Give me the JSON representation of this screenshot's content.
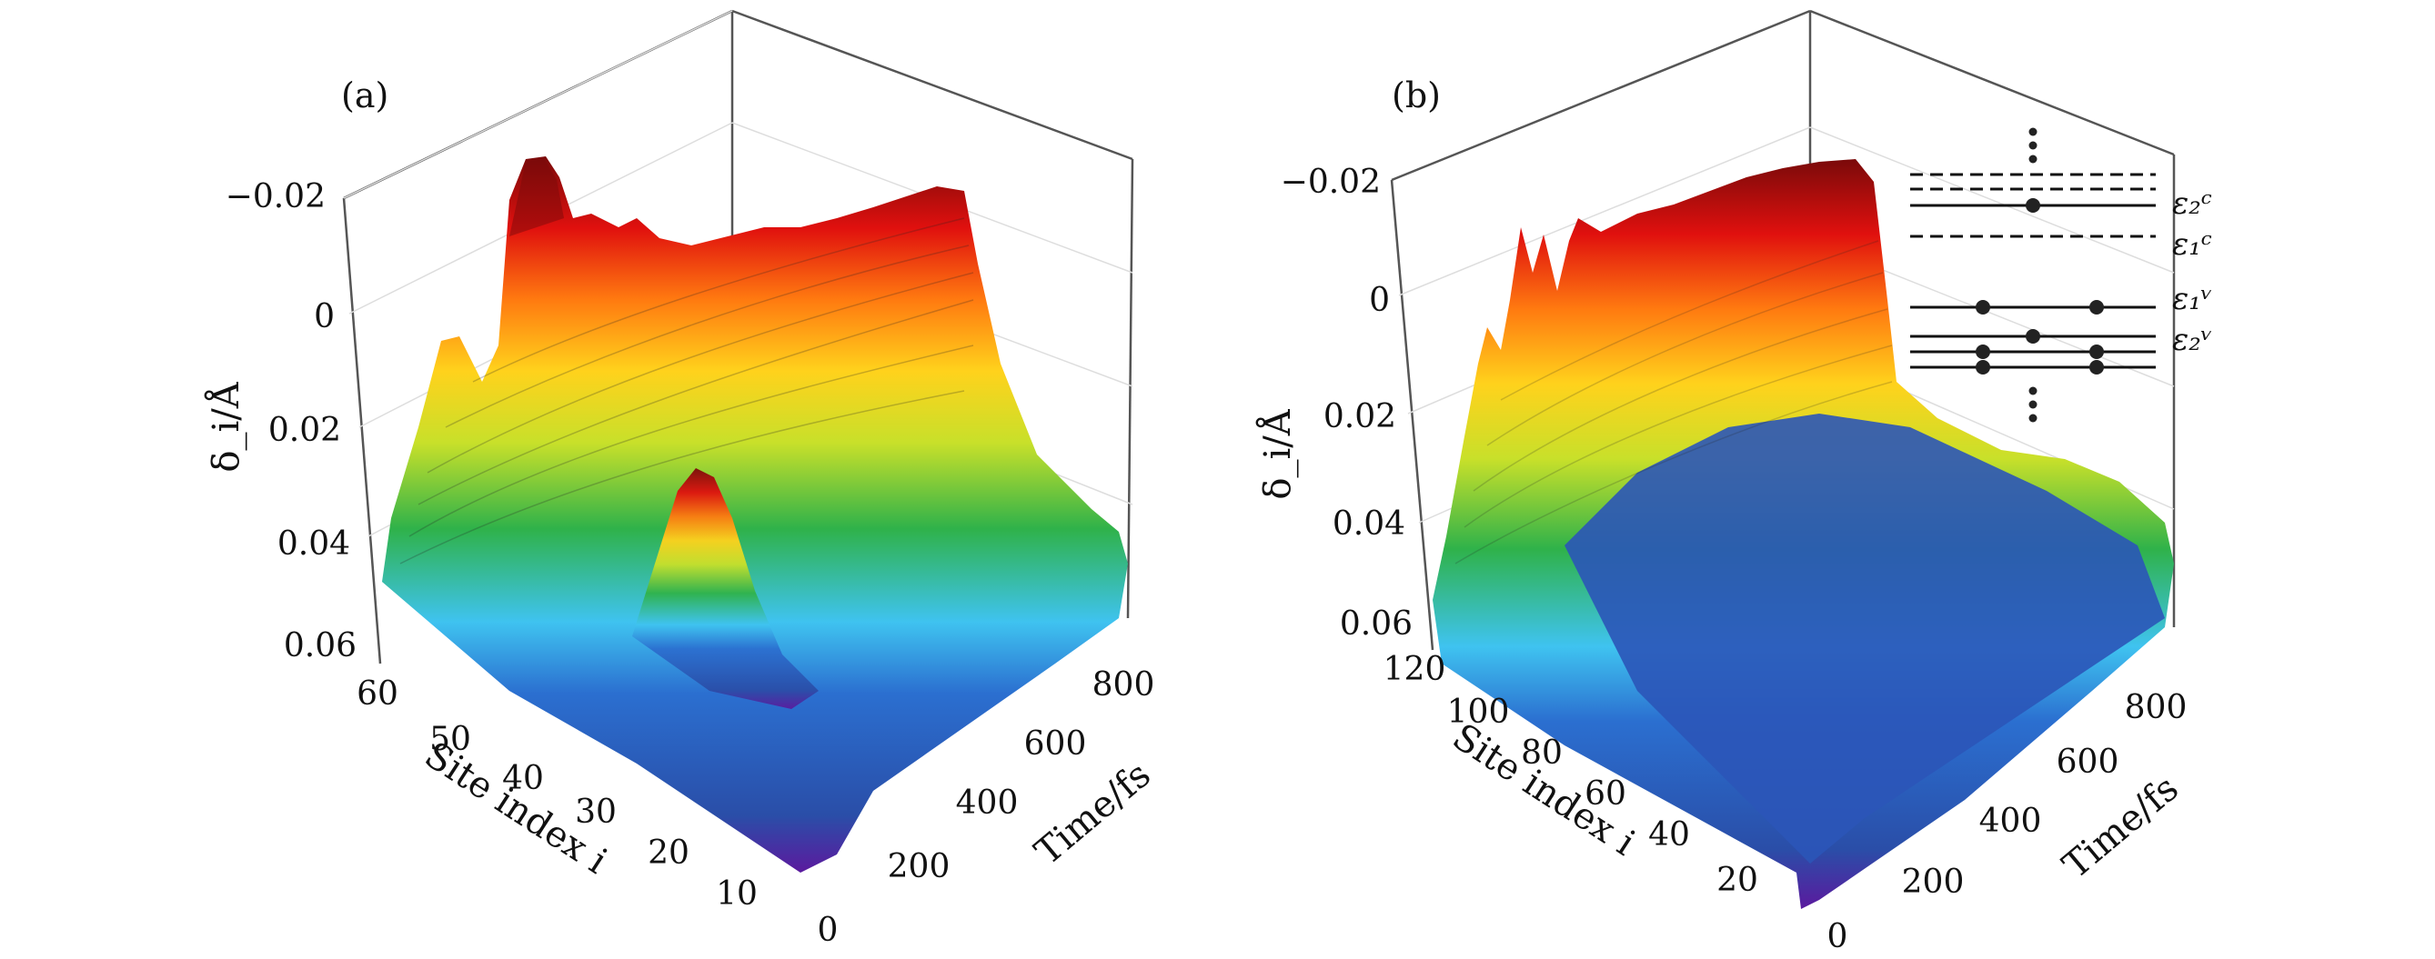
{
  "figure": {
    "panels": [
      {
        "label": "(a)",
        "zlabel": "δ_i/Å",
        "xlabel": "Site index i",
        "ylabel": "Time/fs",
        "ztick_labels": [
          "−0.02",
          "0",
          "0.02",
          "0.04",
          "0.06"
        ],
        "site_tick_labels": [
          "60",
          "50",
          "40",
          "30",
          "20",
          "10"
        ],
        "time_tick_labels": [
          "0",
          "200",
          "400",
          "600",
          "800"
        ]
      },
      {
        "label": "(b)",
        "zlabel": "δ_i/Å",
        "xlabel": "Site index i",
        "ylabel": "Time/fs",
        "ztick_labels": [
          "−0.02",
          "0",
          "0.02",
          "0.04",
          "0.06"
        ],
        "site_tick_labels": [
          "120",
          "100",
          "80",
          "60",
          "40",
          "20"
        ],
        "time_tick_labels": [
          "0",
          "200",
          "400",
          "600",
          "800"
        ],
        "inset_levels": {
          "labels": [
            "ε₂ᶜ",
            "ε₁ᶜ",
            "ε₁ᵛ",
            "ε₂ᵛ"
          ]
        }
      }
    ]
  },
  "chart_data": [
    {
      "type": "surface",
      "panel": "(a)",
      "xlabel": "Site index i",
      "ylabel": "Time/fs",
      "zlabel": "δ_i/Å",
      "site_range": [
        1,
        60
      ],
      "time_range": [
        0,
        900
      ],
      "z_range": [
        0.06,
        -0.02
      ],
      "z_axis_inverted": true,
      "colormap": [
        "#5b1a9e",
        "#2a4ea8",
        "#2b6fd0",
        "#3fc3f0",
        "#2fb24a",
        "#c8e02a",
        "#ffd21c",
        "#ff7a10",
        "#e0100e",
        "#7a0a0a"
      ],
      "features": [
        {
          "description_site": 56,
          "time_fs": 100,
          "peak_delta": 0.005
        },
        {
          "description_site": 45,
          "time_fs": 250,
          "peak_delta": -0.026
        },
        {
          "description_site": 20,
          "time_fs": 300,
          "peak_delta": 0.025
        },
        {
          "description_site": 40,
          "time_fs": 850,
          "peak_delta": -0.016
        }
      ]
    },
    {
      "type": "surface",
      "panel": "(b)",
      "xlabel": "Site index i",
      "ylabel": "Time/fs",
      "zlabel": "δ_i/Å",
      "site_range": [
        1,
        120
      ],
      "time_range": [
        0,
        900
      ],
      "z_range": [
        0.06,
        -0.02
      ],
      "z_axis_inverted": true,
      "colormap": [
        "#5b1a9e",
        "#2a4ea8",
        "#2b6fd0",
        "#3fc3f0",
        "#2fb24a",
        "#c8e02a",
        "#ffd21c",
        "#ff7a10",
        "#e0100e",
        "#7a0a0a"
      ],
      "features": [
        {
          "description_site": 118,
          "time_fs": 80,
          "peak_delta": 0.005
        },
        {
          "description_site": 115,
          "time_fs": 150,
          "peak_delta": -0.012
        },
        {
          "description_site": 113,
          "time_fs": 300,
          "peak_delta": -0.012
        },
        {
          "description_site": 112,
          "time_fs": 850,
          "peak_delta": -0.022
        }
      ]
    }
  ]
}
